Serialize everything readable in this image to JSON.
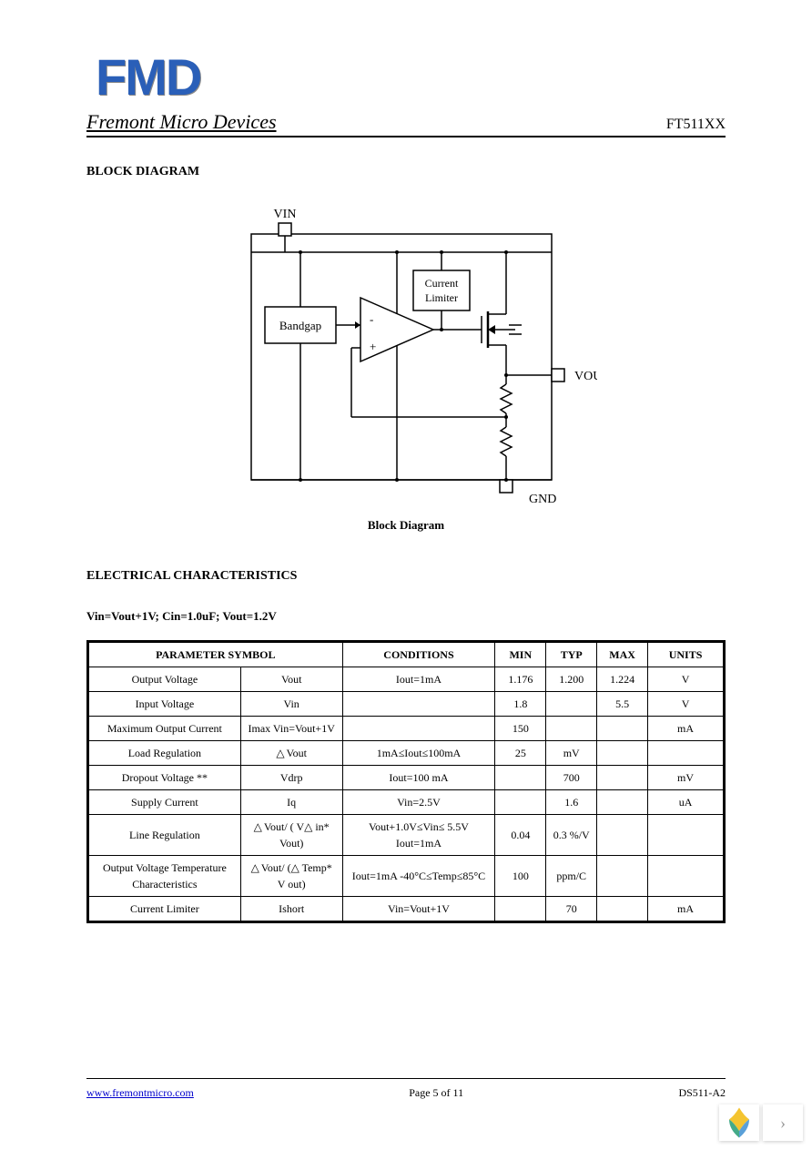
{
  "logo_text": "FMD",
  "company_name": "Fremont Micro Devices",
  "part_number": "FT511XX",
  "section_block_diagram": "BLOCK DIAGRAM",
  "diagram": {
    "vin_label": "VIN",
    "vout_label": "VOUT",
    "gnd_label": "GND",
    "bandgap_label": "Bandgap",
    "current_limiter_label1": "Current",
    "current_limiter_label2": "Limiter",
    "opamp_minus": "-",
    "opamp_plus": "+",
    "caption": "Block Diagram",
    "line_color": "#000000",
    "box_fill": "#ffffff"
  },
  "section_elec": "ELECTRICAL CHARACTERISTICS",
  "conditions_line": "Vin=Vout+1V; Cin=1.0uF; Vout=1.2V",
  "table": {
    "headers": {
      "param": "PARAMETER SYMBOL",
      "symbol": "",
      "conditions": "CONDITIONS",
      "min": "MIN",
      "typ": "TYP",
      "max": "MAX",
      "units": "UNITS"
    },
    "rows": [
      {
        "param": "Output Voltage",
        "symbol": "Vout",
        "cond": "Iout=1mA",
        "min": "1.176",
        "typ": "1.200",
        "max": "1.224",
        "units": "V"
      },
      {
        "param": "Input Voltage",
        "symbol": "Vin",
        "cond": "",
        "min": "1.8",
        "typ": "",
        "max": "5.5",
        "units": "V"
      },
      {
        "param": "Maximum Output Current",
        "symbol": "Imax Vin=Vout+1V",
        "cond": "",
        "min": "150",
        "typ": "",
        "max": "",
        "units": "mA"
      },
      {
        "param": "Load Regulation",
        "symbol": "△ Vout",
        "cond": "1mA≤Iout≤100mA",
        "min": "25",
        "typ": "mV",
        "max": "",
        "units": ""
      },
      {
        "param": "Dropout Voltage **",
        "symbol": "Vdrp",
        "cond": "Iout=100 mA",
        "min": "",
        "typ": "700",
        "max": "",
        "units": "mV"
      },
      {
        "param": "Supply Current",
        "symbol": "Iq",
        "cond": "Vin=2.5V",
        "min": "",
        "typ": "1.6",
        "max": "",
        "units": "uA"
      },
      {
        "param": "Line Regulation",
        "symbol": "△ Vout/ ( V△ in* Vout)",
        "cond": "Vout+1.0V≤Vin≤ 5.5V Iout=1mA",
        "min": "0.04",
        "typ": "0.3  %/V",
        "max": "",
        "units": ""
      },
      {
        "param": "Output Voltage Temperature Characteristics",
        "symbol": "△ Vout/ (△ Temp* V  out)",
        "cond": "Iout=1mA -40°C≤Temp≤85°C",
        "min": "100",
        "typ": "ppm/C",
        "max": "",
        "units": ""
      },
      {
        "param": "Current Limiter",
        "symbol": "Ishort",
        "cond": "Vin=Vout+1V",
        "min": "",
        "typ": "70",
        "max": "",
        "units": "mA"
      }
    ],
    "col_widths": [
      "24%",
      "16%",
      "24%",
      "8%",
      "8%",
      "8%",
      "12%"
    ]
  },
  "footer": {
    "url": "www.fremontmicro.com",
    "page": "Page 5 of 11",
    "doc": "DS511-A2"
  },
  "colors": {
    "logo": "#2a5fb8",
    "link": "#0000cc",
    "border": "#000000",
    "bg": "#ffffff"
  }
}
